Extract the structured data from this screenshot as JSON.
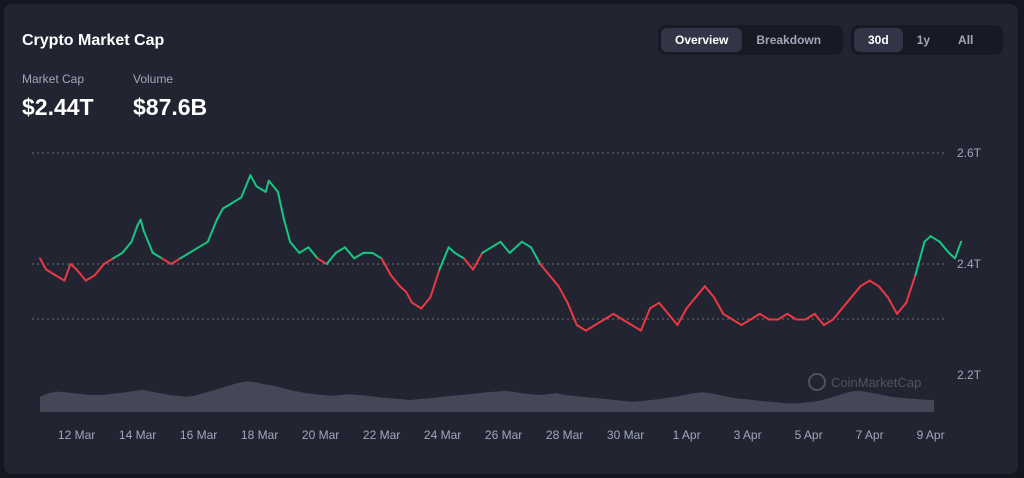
{
  "header": {
    "title": "Crypto Market Cap"
  },
  "stats": [
    {
      "label": "Market Cap",
      "value": "$2.44T"
    },
    {
      "label": "Volume",
      "value": "$87.6B"
    }
  ],
  "view_toggle": {
    "options": [
      "Overview",
      "Breakdown"
    ],
    "active": "Overview"
  },
  "range_toggle": {
    "options": [
      "30d",
      "1y",
      "All"
    ],
    "active": "30d"
  },
  "watermark": {
    "text": "CoinMarketCap"
  },
  "colors": {
    "up": "#16c784",
    "down": "#ea3943",
    "volume": "#5c6170",
    "grid": "#6b7080",
    "text": "#a1a7bb"
  },
  "chart_data": {
    "type": "line",
    "baseline_value": 2.41,
    "ylim": [
      2.2,
      2.6
    ],
    "y_ticks": [
      "2.6T",
      "2.4T",
      "2.2T"
    ],
    "y_tick_values": [
      2.6,
      2.4,
      2.2
    ],
    "x_tick_labels": [
      "12 Mar",
      "14 Mar",
      "16 Mar",
      "18 Mar",
      "20 Mar",
      "22 Mar",
      "24 Mar",
      "26 Mar",
      "28 Mar",
      "30 Mar",
      "1 Apr",
      "3 Apr",
      "5 Apr",
      "7 Apr",
      "9 Apr"
    ],
    "x_start_day": 10.8,
    "series": [
      {
        "x": [
          10.8,
          11.0,
          11.3,
          11.6,
          11.8,
          12.0,
          12.3,
          12.6,
          12.9,
          13.2,
          13.5,
          13.8,
          14.0,
          14.1,
          14.2,
          14.5,
          14.8,
          15.1,
          15.4,
          15.7,
          16.0,
          16.3,
          16.6,
          16.8,
          17.1,
          17.4,
          17.7,
          17.9,
          18.2,
          18.3,
          18.6,
          18.8,
          19.0,
          19.3,
          19.6,
          19.9,
          20.2,
          20.5,
          20.8,
          21.1,
          21.4,
          21.7,
          22.0,
          22.3,
          22.6,
          22.8,
          23.0,
          23.3,
          23.6,
          23.9,
          24.2,
          24.4,
          24.7,
          25.0,
          25.3,
          25.6,
          25.9,
          26.2,
          26.6,
          26.9,
          27.2,
          27.5,
          27.8,
          28.1,
          28.4,
          28.7,
          29.0,
          29.3,
          29.6,
          29.9,
          30.2,
          30.5,
          30.8,
          31.1,
          31.4,
          31.7,
          32.0,
          32.3,
          32.6,
          32.9,
          33.2,
          33.5,
          33.8,
          34.1,
          34.4,
          34.7,
          35.0,
          35.3,
          35.6,
          35.9,
          36.2,
          36.5,
          36.8,
          37.1,
          37.4,
          37.7,
          38.0,
          38.3,
          38.6,
          38.9,
          39.2,
          39.5,
          39.8,
          40.0,
          40.3,
          40.6,
          40.8,
          41.0
        ],
        "y": [
          2.41,
          2.39,
          2.38,
          2.37,
          2.4,
          2.39,
          2.37,
          2.38,
          2.4,
          2.41,
          2.42,
          2.44,
          2.47,
          2.48,
          2.46,
          2.42,
          2.41,
          2.4,
          2.41,
          2.42,
          2.43,
          2.44,
          2.48,
          2.5,
          2.51,
          2.52,
          2.56,
          2.54,
          2.53,
          2.55,
          2.53,
          2.48,
          2.44,
          2.42,
          2.43,
          2.41,
          2.4,
          2.42,
          2.43,
          2.41,
          2.42,
          2.42,
          2.41,
          2.38,
          2.36,
          2.35,
          2.33,
          2.32,
          2.34,
          2.39,
          2.43,
          2.42,
          2.41,
          2.39,
          2.42,
          2.43,
          2.44,
          2.42,
          2.44,
          2.43,
          2.4,
          2.38,
          2.36,
          2.33,
          2.29,
          2.28,
          2.29,
          2.3,
          2.31,
          2.3,
          2.29,
          2.28,
          2.32,
          2.33,
          2.31,
          2.29,
          2.32,
          2.34,
          2.36,
          2.34,
          2.31,
          2.3,
          2.29,
          2.3,
          2.31,
          2.3,
          2.3,
          2.31,
          2.3,
          2.3,
          2.31,
          2.29,
          2.3,
          2.32,
          2.34,
          2.36,
          2.37,
          2.36,
          2.34,
          2.31,
          2.33,
          2.38,
          2.44,
          2.45,
          2.44,
          2.42,
          2.41,
          2.44
        ]
      }
    ],
    "volume": [
      0.45,
      0.55,
      0.6,
      0.58,
      0.55,
      0.52,
      0.5,
      0.5,
      0.52,
      0.55,
      0.58,
      0.62,
      0.65,
      0.6,
      0.55,
      0.5,
      0.48,
      0.45,
      0.48,
      0.55,
      0.62,
      0.7,
      0.78,
      0.85,
      0.9,
      0.88,
      0.82,
      0.78,
      0.72,
      0.65,
      0.6,
      0.55,
      0.52,
      0.5,
      0.48,
      0.5,
      0.52,
      0.5,
      0.48,
      0.45,
      0.42,
      0.4,
      0.38,
      0.35,
      0.38,
      0.4,
      0.42,
      0.45,
      0.48,
      0.5,
      0.52,
      0.55,
      0.58,
      0.6,
      0.62,
      0.6,
      0.55,
      0.52,
      0.5,
      0.52,
      0.55,
      0.5,
      0.48,
      0.45,
      0.42,
      0.4,
      0.38,
      0.35,
      0.32,
      0.3,
      0.32,
      0.35,
      0.38,
      0.42,
      0.45,
      0.5,
      0.55,
      0.58,
      0.55,
      0.5,
      0.45,
      0.4,
      0.38,
      0.35,
      0.32,
      0.3,
      0.28,
      0.25,
      0.25,
      0.28,
      0.3,
      0.35,
      0.42,
      0.5,
      0.58,
      0.62,
      0.6,
      0.55,
      0.5,
      0.45,
      0.42,
      0.4,
      0.38,
      0.36,
      0.35
    ]
  }
}
